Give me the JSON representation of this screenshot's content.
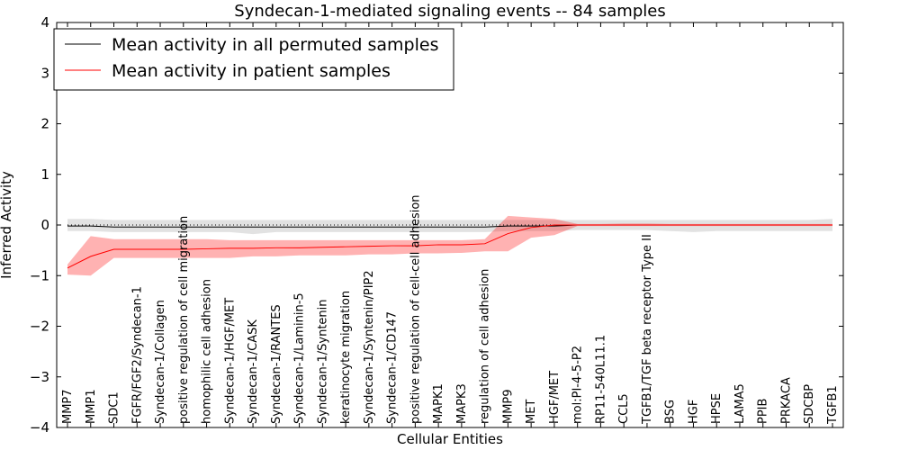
{
  "chart_data": {
    "type": "line",
    "title": "Syndecan-1-mediated signaling events -- 84 samples",
    "xlabel": "Cellular Entities",
    "ylabel": "Inferred Activity",
    "ylim": [
      -4,
      4
    ],
    "yticks": [
      -4,
      -3,
      -2,
      -1,
      0,
      1,
      2,
      3,
      4
    ],
    "grid": false,
    "legend_position": "top-left",
    "categories": [
      "MMP7",
      "MMP1",
      "SDC1",
      "FGFR/FGF2/Syndecan-1",
      "Syndecan-1/Collagen",
      "positive regulation of cell migration",
      "homophilic cell adhesion",
      "Syndecan-1/HGF/MET",
      "Syndecan-1/CASK",
      "Syndecan-1/RANTES",
      "Syndecan-1/Laminin-5",
      "Syndecan-1/Syntenin",
      "keratinocyte migration",
      "Syndecan-1/Syntenin/PIP2",
      "Syndecan-1/CD147",
      "positive regulation of cell-cell adhesion",
      "MAPK1",
      "MAPK3",
      "regulation of cell adhesion",
      "MMP9",
      "MET",
      "HGF/MET",
      "mol:PI-4-5-P2",
      "RP11-540L11.1",
      "CCL5",
      "TGFB1/TGF beta receptor Type II",
      "BSG",
      "HGF",
      "HPSE",
      "LAMA5",
      "PPIB",
      "PRKACA",
      "SDCBP",
      "TGFB1"
    ],
    "series": [
      {
        "name": "Mean activity in all permuted samples",
        "color": "#000000",
        "values": [
          -0.02,
          -0.02,
          -0.04,
          -0.04,
          -0.04,
          -0.04,
          -0.04,
          -0.04,
          -0.04,
          -0.04,
          -0.04,
          -0.04,
          -0.04,
          -0.04,
          -0.04,
          -0.04,
          -0.04,
          -0.04,
          -0.04,
          -0.02,
          -0.02,
          -0.02,
          0.0,
          0.0,
          0.0,
          0.0,
          0.0,
          0.0,
          0.0,
          0.0,
          0.0,
          0.0,
          0.0,
          0.0
        ],
        "band_upper": [
          0.12,
          0.12,
          0.1,
          0.1,
          0.1,
          0.1,
          0.1,
          0.1,
          0.1,
          0.1,
          0.1,
          0.1,
          0.1,
          0.1,
          0.1,
          0.1,
          0.1,
          0.1,
          0.1,
          0.1,
          0.1,
          0.1,
          0.1,
          0.1,
          0.1,
          0.1,
          0.1,
          0.1,
          0.1,
          0.1,
          0.1,
          0.1,
          0.1,
          0.12
        ],
        "band_lower": [
          -0.12,
          -0.12,
          -0.14,
          -0.14,
          -0.14,
          -0.14,
          -0.14,
          -0.14,
          -0.18,
          -0.14,
          -0.14,
          -0.14,
          -0.14,
          -0.14,
          -0.14,
          -0.14,
          -0.14,
          -0.14,
          -0.14,
          -0.12,
          -0.12,
          -0.12,
          -0.1,
          -0.1,
          -0.1,
          -0.1,
          -0.12,
          -0.14,
          -0.12,
          -0.12,
          -0.12,
          -0.12,
          -0.12,
          -0.12
        ]
      },
      {
        "name": "Mean activity in patient samples",
        "color": "#ff0000",
        "values": [
          -0.85,
          -0.62,
          -0.48,
          -0.48,
          -0.48,
          -0.48,
          -0.47,
          -0.46,
          -0.46,
          -0.45,
          -0.45,
          -0.44,
          -0.43,
          -0.42,
          -0.41,
          -0.41,
          -0.39,
          -0.39,
          -0.37,
          -0.17,
          -0.05,
          0.0,
          0.0,
          0.0,
          0.0,
          0.0,
          0.0,
          0.0,
          0.0,
          0.0,
          0.0,
          0.0,
          0.0,
          0.0
        ],
        "band_upper": [
          -0.78,
          -0.22,
          -0.28,
          -0.28,
          -0.28,
          -0.28,
          -0.28,
          -0.3,
          -0.3,
          -0.3,
          -0.3,
          -0.3,
          -0.3,
          -0.3,
          -0.3,
          -0.3,
          -0.3,
          -0.3,
          -0.28,
          0.18,
          0.15,
          0.12,
          0.02,
          0.02,
          0.03,
          0.03,
          0.02,
          0.02,
          0.02,
          0.02,
          0.02,
          0.02,
          0.02,
          0.02
        ],
        "band_lower": [
          -0.98,
          -1.0,
          -0.65,
          -0.65,
          -0.65,
          -0.65,
          -0.65,
          -0.65,
          -0.62,
          -0.62,
          -0.6,
          -0.6,
          -0.6,
          -0.58,
          -0.58,
          -0.56,
          -0.56,
          -0.55,
          -0.52,
          -0.52,
          -0.25,
          -0.2,
          -0.02,
          -0.02,
          -0.02,
          -0.02,
          -0.02,
          -0.02,
          -0.02,
          -0.02,
          -0.02,
          -0.02,
          -0.02,
          -0.02
        ]
      }
    ],
    "reference_line": 0
  }
}
